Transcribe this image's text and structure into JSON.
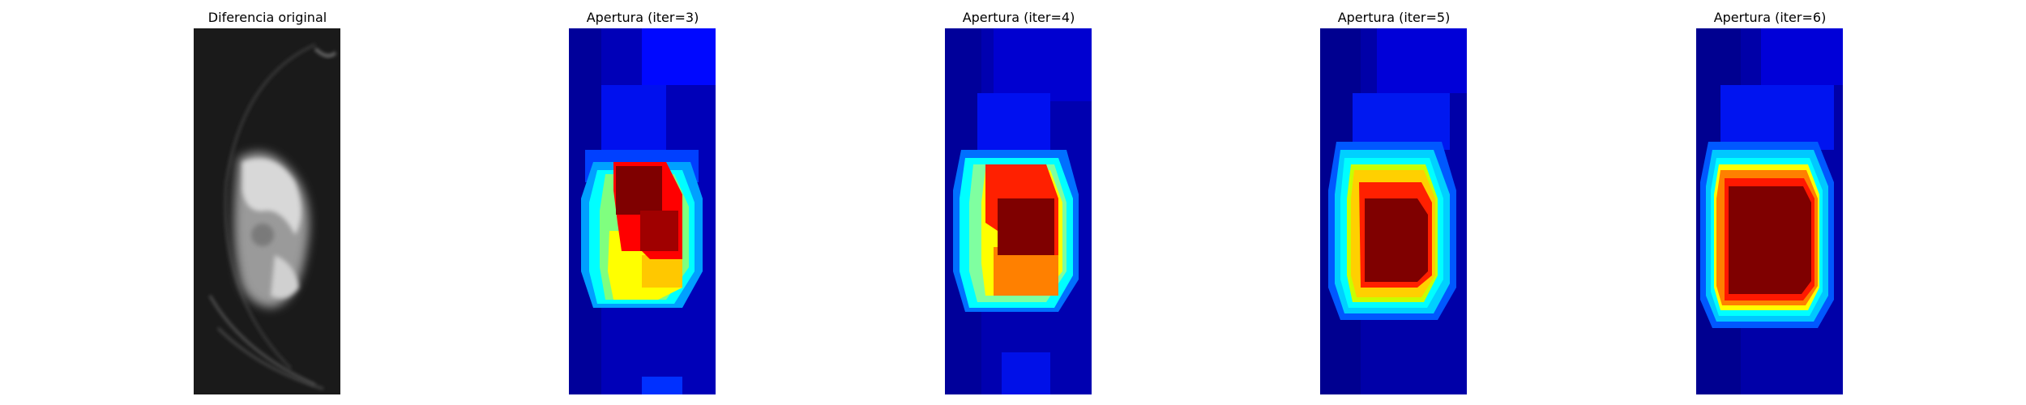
{
  "figure": {
    "panels": [
      {
        "title": "Diferencia original",
        "colormap": "gray"
      },
      {
        "title": "Apertura (iter=3)",
        "colormap": "jet"
      },
      {
        "title": "Apertura (iter=4)",
        "colormap": "jet"
      },
      {
        "title": "Apertura (iter=5)",
        "colormap": "jet"
      },
      {
        "title": "Apertura (iter=6)",
        "colormap": "jet"
      }
    ]
  },
  "colors": {
    "jet_dark_blue": "#00007f",
    "jet_blue": "#0000ff",
    "jet_cyan": "#00ffff",
    "jet_yellow": "#ffff00",
    "jet_orange": "#ff7f00",
    "jet_red": "#ff0000",
    "jet_dark_red": "#7f0000"
  }
}
